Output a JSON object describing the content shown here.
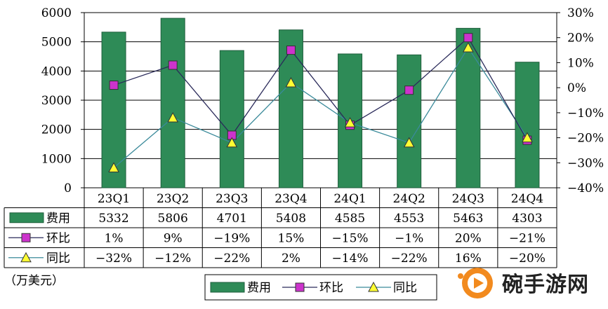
{
  "chart_data": {
    "type": "bar+line",
    "categories": [
      "23Q1",
      "23Q2",
      "23Q3",
      "23Q4",
      "24Q1",
      "24Q2",
      "24Q3",
      "24Q4"
    ],
    "series": [
      {
        "name": "费用",
        "type": "bar",
        "axis": "left",
        "values": [
          5332,
          5806,
          4701,
          5408,
          4585,
          4553,
          5463,
          4303
        ],
        "labels": [
          "5332",
          "5806",
          "4701",
          "5408",
          "4585",
          "4553",
          "5463",
          "4303"
        ]
      },
      {
        "name": "环比",
        "type": "line",
        "axis": "right",
        "marker": "square",
        "values": [
          1,
          9,
          -19,
          15,
          -15,
          -1,
          20,
          -21
        ],
        "labels": [
          "1%",
          "9%",
          "−19%",
          "15%",
          "−15%",
          "−1%",
          "20%",
          "−21%"
        ]
      },
      {
        "name": "同比",
        "type": "line",
        "axis": "right",
        "marker": "triangle",
        "values": [
          -32,
          -12,
          -22,
          2,
          -14,
          -22,
          16,
          -20
        ],
        "labels": [
          "−32%",
          "−12%",
          "−22%",
          "2%",
          "−14%",
          "−22%",
          "16%",
          "−20%"
        ]
      }
    ],
    "left_axis": {
      "ylim": [
        0,
        6000
      ],
      "ticks": [
        "0",
        "1000",
        "2000",
        "3000",
        "4000",
        "5000",
        "6000"
      ]
    },
    "right_axis": {
      "ylim": [
        -40,
        30
      ],
      "ticks": [
        "30%",
        "20%",
        "10%",
        "0%",
        "−10%",
        "−20%",
        "−30%",
        "−40%"
      ]
    },
    "grid": true,
    "legend_position": "bottom",
    "unit_label": "（万美元）",
    "colors": {
      "bar": "#2e8b57",
      "bar_edge": "#1f5e3c",
      "mom": "#cc33cc",
      "mom_line": "#2a2a5a",
      "yoy": "#ffff33",
      "yoy_line": "#3a8a9a"
    }
  },
  "watermark": {
    "text": "碗手游网"
  }
}
